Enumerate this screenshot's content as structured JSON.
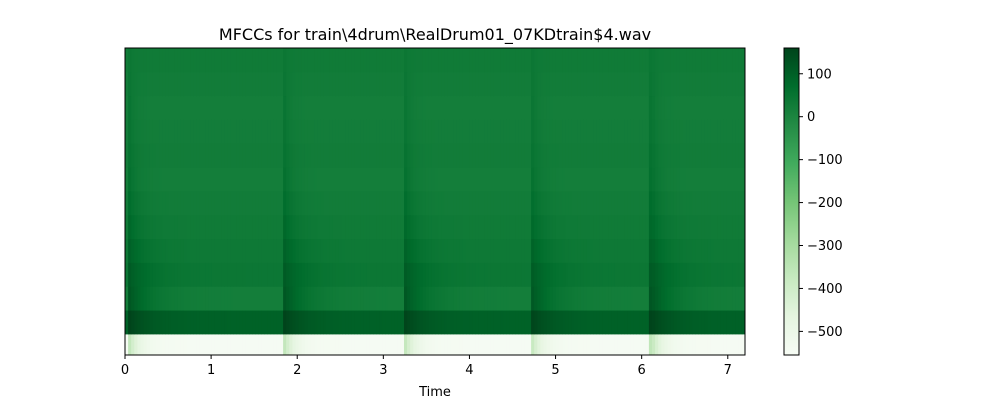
{
  "chart_data": {
    "type": "heatmap",
    "title": "MFCCs for train\\4drum\\RealDrum01_07KDtrain$4.wav",
    "xlabel": "Time",
    "ylabel": "",
    "xlim": [
      0,
      7.2
    ],
    "x_ticks": [
      "0",
      "1",
      "2",
      "3",
      "4",
      "5",
      "6",
      "7"
    ],
    "n_coefficients": 13,
    "onsets": [
      0.05,
      1.85,
      3.25,
      4.72,
      6.12
    ],
    "base_values": [
      -545,
      95,
      20,
      40,
      35,
      30,
      25,
      20,
      25,
      22,
      20,
      25,
      30
    ],
    "onset_values": [
      -360,
      160,
      120,
      110,
      95,
      80,
      70,
      60,
      55,
      50,
      48,
      45,
      42
    ],
    "colorbar": {
      "range": [
        -555,
        160
      ],
      "ticks": [
        "100",
        "0",
        "−100",
        "−200",
        "−300",
        "−400",
        "−500"
      ],
      "tick_values": [
        100,
        0,
        -100,
        -200,
        -300,
        -400,
        -500
      ],
      "colormap": "Greens"
    },
    "grid": false,
    "legend": "none"
  }
}
